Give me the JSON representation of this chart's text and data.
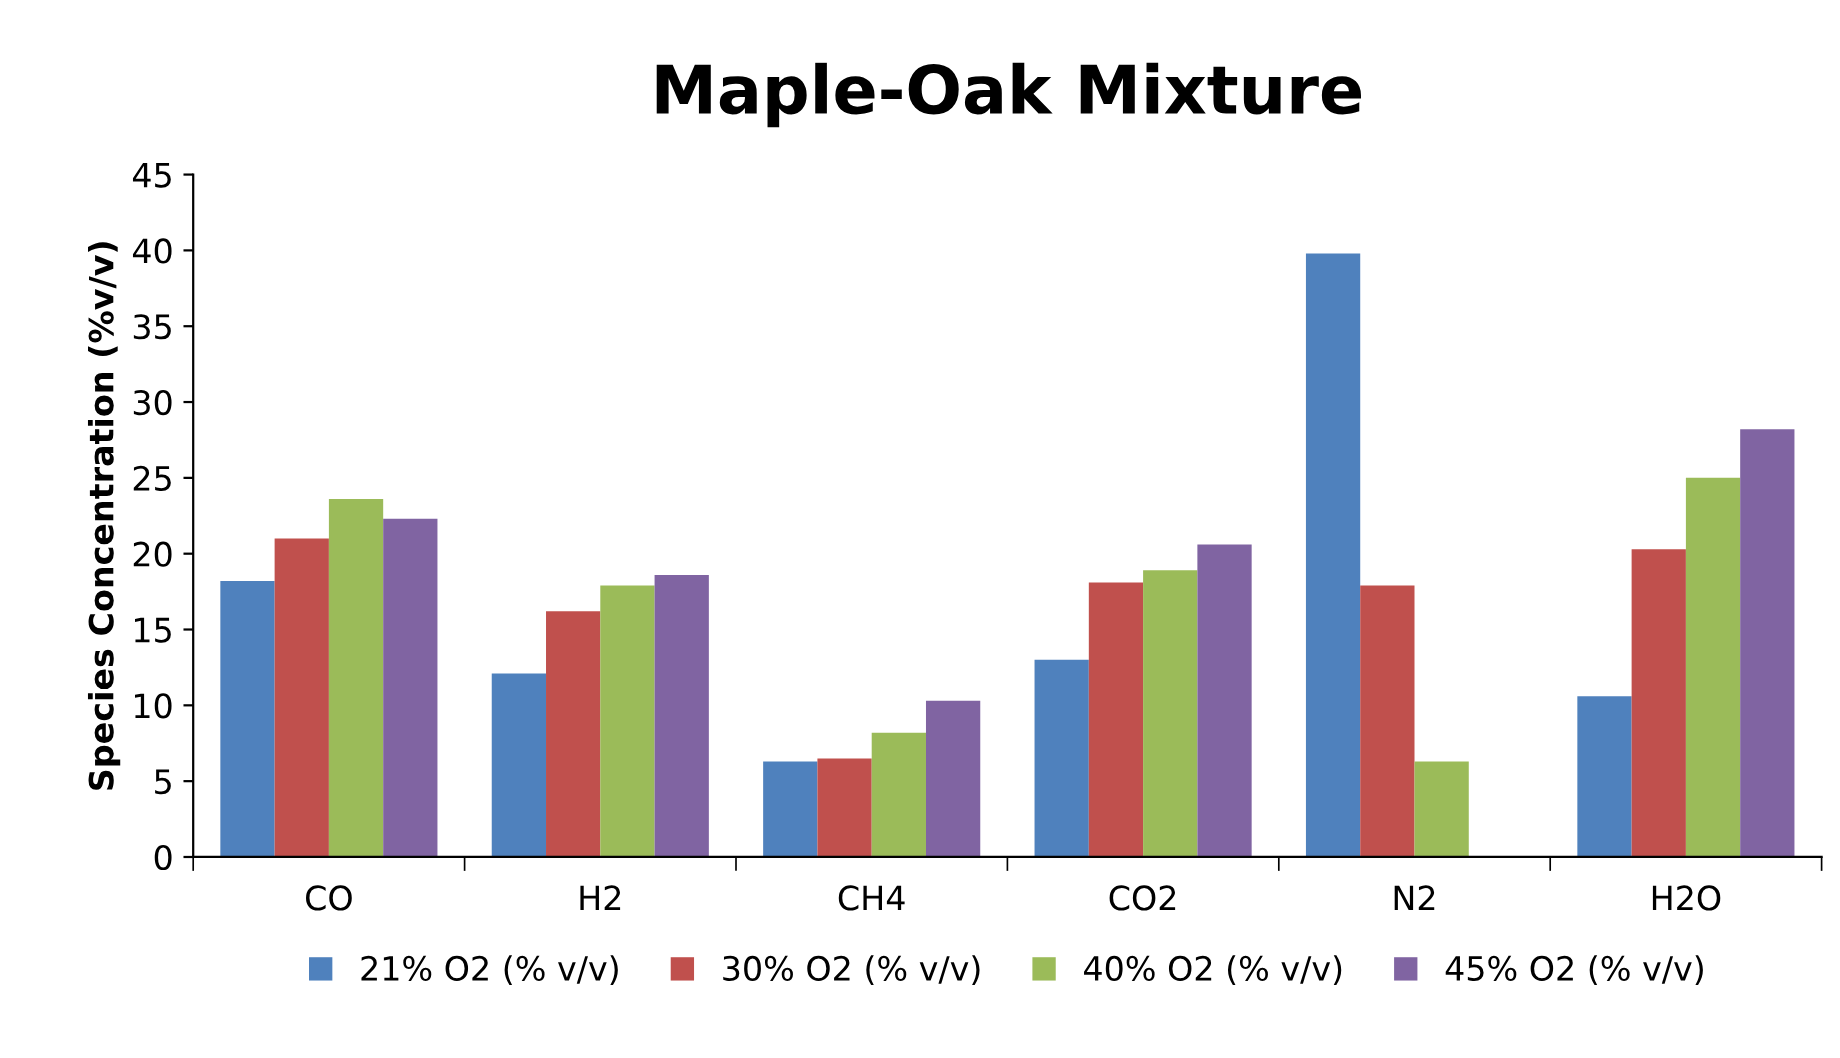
{
  "chart_data": {
    "type": "bar",
    "title": "Maple-Oak Mixture",
    "ylabel": "Species Concentration (%v/v)",
    "categories": [
      "CO",
      "H2",
      "CH4",
      "CO2",
      "N2",
      "H2O"
    ],
    "series": [
      {
        "name": "21% O2 (% v/v)",
        "color": "#4f81bd",
        "values": [
          18.2,
          12.1,
          6.3,
          13.0,
          39.8,
          10.6
        ]
      },
      {
        "name": "30% O2 (% v/v)",
        "color": "#c0504d",
        "values": [
          21.0,
          16.2,
          6.5,
          18.1,
          17.9,
          20.3
        ]
      },
      {
        "name": "40% O2 (% v/v)",
        "color": "#9bbb59",
        "values": [
          23.6,
          17.9,
          8.2,
          18.9,
          6.3,
          25.0
        ]
      },
      {
        "name": "45% O2 (% v/v)",
        "color": "#8064a2",
        "values": [
          22.3,
          18.6,
          10.3,
          20.6,
          null,
          28.2
        ]
      }
    ],
    "ylim": [
      0,
      45
    ],
    "yticks": [
      0,
      5,
      10,
      15,
      20,
      25,
      30,
      35,
      40,
      45
    ],
    "grid": false,
    "legend": "bottom"
  }
}
